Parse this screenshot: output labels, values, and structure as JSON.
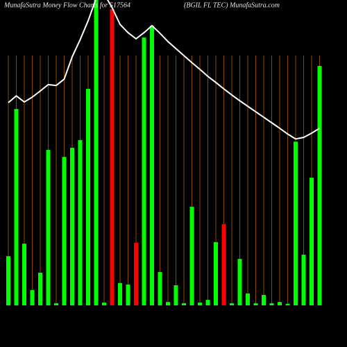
{
  "chart_data": {
    "type": "bar-line",
    "title": "MunafaSutra  Money Flow  Charts for 517564",
    "subtitle": "(BGIL  FL  TEC) MunafaSutra.com",
    "ylim": [
      0,
      100
    ],
    "bar_colors": [
      "#00ff00",
      "#00ff00",
      "#00ff00",
      "#00ff00",
      "#00ff00",
      "#00ff00",
      "#00ff00",
      "#00ff00",
      "#00ff00",
      "#00ff00",
      "#00ff00",
      "#00ff00",
      "#00ff00",
      "#ff0000",
      "#00ff00",
      "#00ff00",
      "#ff0000",
      "#00ff00",
      "#00ff00",
      "#00ff00",
      "#00ff00",
      "#00ff00",
      "#00ff00",
      "#00ff00",
      "#00ff00",
      "#00ff00",
      "#00ff00",
      "#ff0000",
      "#00ff00",
      "#00ff00",
      "#00ff00",
      "#00ff00",
      "#00ff00",
      "#00ff00",
      "#00ff00",
      "#00ff00",
      "#00ff00",
      "#00ff00",
      "#00ff00",
      "#00ff00"
    ],
    "values": [
      16.1,
      64.3,
      20.2,
      5.0,
      10.7,
      50.9,
      0.7,
      48.6,
      51.6,
      54.1,
      70.9,
      104,
      0.9,
      97.0,
      7.3,
      6.8,
      20.5,
      87.7,
      91.6,
      10.9,
      1.1,
      6.6,
      0.7,
      32.3,
      0.9,
      1.8,
      20.7,
      26.6,
      0.7,
      15.2,
      3.9,
      0.7,
      3.4,
      0.7,
      1.1,
      0.5,
      53.6,
      16.6,
      41.8,
      78.4
    ],
    "line_color": "#ffffff",
    "line_values": [
      66.4,
      68.6,
      66.6,
      68.2,
      70.2,
      72.3,
      72.0,
      74.1,
      81.4,
      87.0,
      93.2,
      100.5,
      102.0,
      97.5,
      92.0,
      89.3,
      87.3,
      89.3,
      91.6,
      89.1,
      86.4,
      84.1,
      81.8,
      79.5,
      77.3,
      75.0,
      73.0,
      70.9,
      68.9,
      67.0,
      65.2,
      63.4,
      61.6,
      59.8,
      58.0,
      56.1,
      54.5,
      55.0,
      56.4,
      58.0
    ],
    "grid_color": "#8a4a00"
  }
}
